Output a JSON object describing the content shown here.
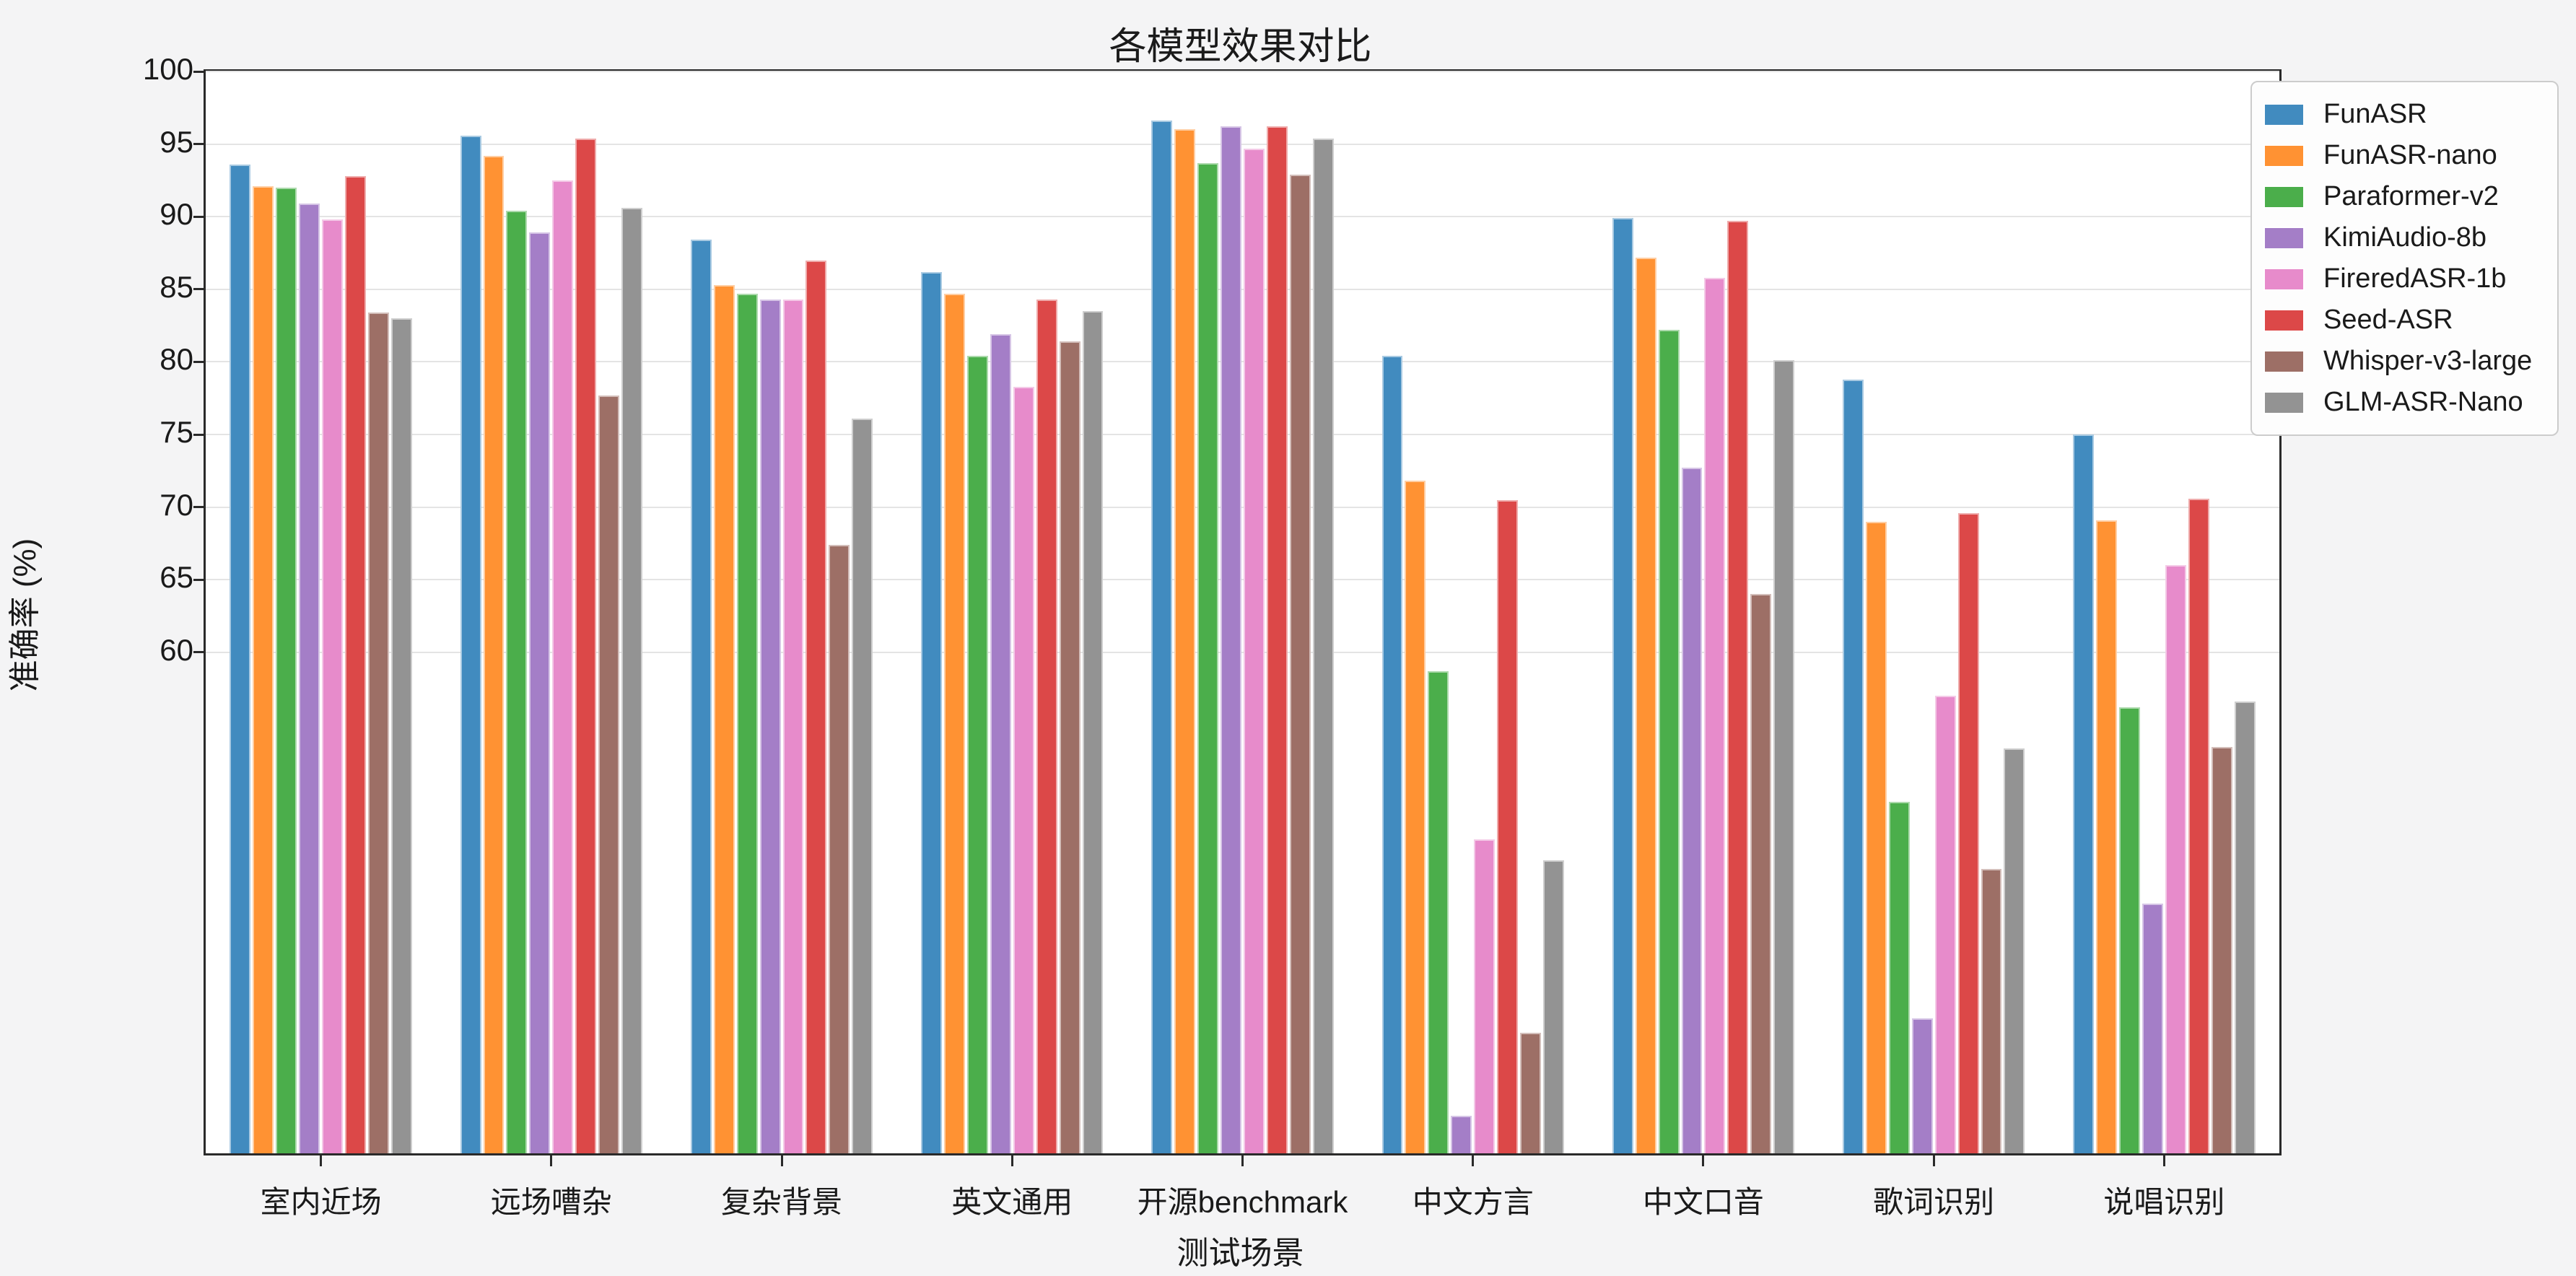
{
  "figure": {
    "background": "#f4f4f5",
    "plot_background": "#ffffff",
    "spine_color": "#2a2a2a",
    "grid_color": "#e4e4e4"
  },
  "chart_data": {
    "type": "bar",
    "title": "各模型效果对比",
    "xlabel": "测试场景",
    "ylabel": "准确率 (%)",
    "categories": [
      "室内近场",
      "远场嘈杂",
      "复杂背景",
      "英文通用",
      "开源benchmark",
      "中文方言",
      "中文口音",
      "歌词识别",
      "说唱识别"
    ],
    "series": [
      {
        "name": "FunASR",
        "color": "#418bbf",
        "values": [
          93.6,
          95.6,
          88.4,
          86.2,
          96.6,
          80.4,
          89.9,
          78.8,
          75.0
        ]
      },
      {
        "name": "FunASR-nano",
        "color": "#ff9233",
        "values": [
          92.1,
          94.2,
          85.3,
          84.7,
          96.0,
          71.8,
          87.2,
          69.0,
          69.1
        ]
      },
      {
        "name": "Paraformer-v2",
        "color": "#4bae4b",
        "values": [
          92.0,
          90.4,
          84.7,
          80.4,
          93.7,
          58.7,
          82.2,
          49.7,
          56.2
        ]
      },
      {
        "name": "KimiAudio-8b",
        "color": "#a47ec7",
        "values": [
          90.9,
          88.9,
          84.3,
          81.9,
          96.2,
          28.1,
          72.7,
          34.8,
          42.7
        ]
      },
      {
        "name": "FireredASR-1b",
        "color": "#e78bcb",
        "values": [
          89.8,
          92.5,
          84.3,
          78.3,
          94.7,
          47.1,
          85.8,
          57.0,
          66.0
        ]
      },
      {
        "name": "Seed-ASR",
        "color": "#dc4848",
        "values": [
          92.8,
          95.4,
          87.0,
          84.3,
          96.2,
          70.5,
          89.7,
          69.6,
          70.6
        ]
      },
      {
        "name": "Whisper-v3-large",
        "color": "#9d6f66",
        "values": [
          83.4,
          77.7,
          67.4,
          81.4,
          92.9,
          33.8,
          64.0,
          45.1,
          53.5
        ]
      },
      {
        "name": "GLM-ASR-Nano",
        "color": "#939393",
        "values": [
          83.0,
          90.6,
          76.1,
          83.5,
          95.4,
          45.7,
          80.1,
          53.4,
          56.6
        ]
      }
    ],
    "ylim": [
      25.5,
      100
    ],
    "yticks": [
      100,
      95,
      90,
      85,
      80,
      75,
      70,
      65,
      60
    ],
    "grid": "horizontal gridlines at labeled yticks only",
    "legend_position": "upper right, outside plot area",
    "group_width_fraction": 0.8
  }
}
